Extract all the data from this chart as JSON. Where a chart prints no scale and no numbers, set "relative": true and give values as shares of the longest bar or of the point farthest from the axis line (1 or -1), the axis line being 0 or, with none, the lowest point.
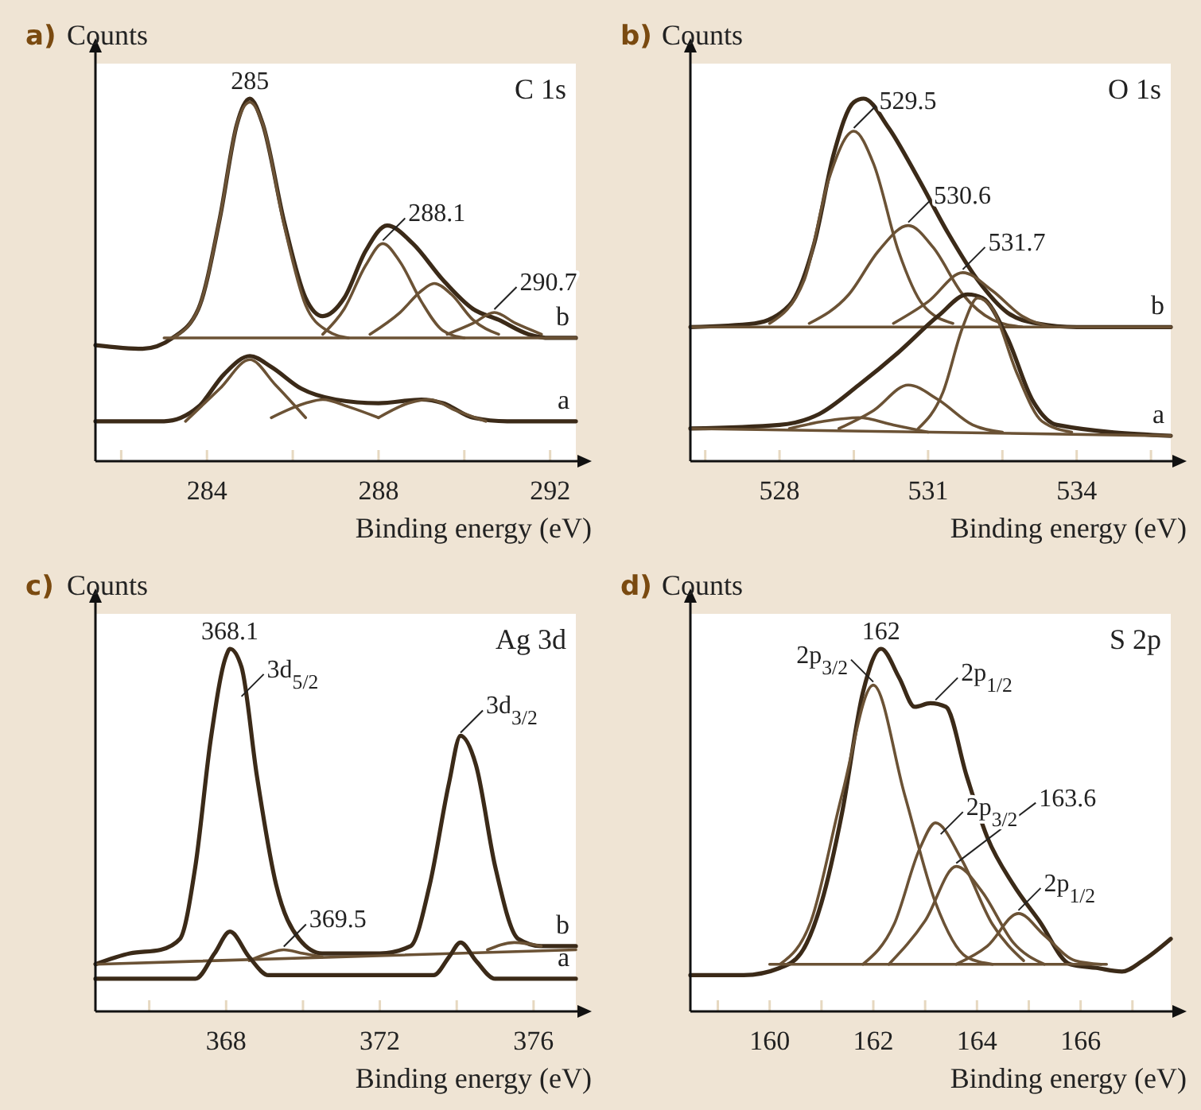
{
  "chart_data": [
    {
      "type": "line",
      "relative": true,
      "title": "C 1s",
      "ylabel": "Counts",
      "xlabel": "Binding energy (eV)",
      "xlim": [
        281.4,
        292.6
      ],
      "xticks": [
        {
          "value": 282,
          "label": null
        },
        284,
        {
          "value": 286,
          "label": null
        },
        288,
        {
          "value": 290,
          "label": null
        },
        292
      ],
      "series": [
        {
          "name": "b",
          "color": "#3b2a18",
          "x": [
            281.4,
            282.5,
            283.2,
            283.8,
            284.3,
            284.7,
            285.0,
            285.3,
            285.8,
            286.3,
            286.7,
            287.2,
            287.7,
            288.2,
            288.8,
            289.5,
            290.2,
            290.8,
            291.5,
            292.0,
            292.6
          ],
          "values": [
            0.32,
            0.31,
            0.34,
            0.42,
            0.67,
            0.93,
            1.0,
            0.93,
            0.66,
            0.45,
            0.4,
            0.45,
            0.58,
            0.65,
            0.6,
            0.5,
            0.42,
            0.39,
            0.35,
            0.34,
            0.34
          ]
        },
        {
          "color": "#6b5235",
          "x": [
            283.0,
            292.6
          ],
          "values": [
            0.34,
            0.34
          ]
        },
        {
          "color": "#6b5235",
          "x": [
            283.2,
            283.8,
            284.3,
            284.7,
            285.0,
            285.3,
            285.8,
            286.3,
            286.8,
            287.3
          ],
          "values": [
            0.34,
            0.42,
            0.67,
            0.93,
            0.99,
            0.93,
            0.65,
            0.43,
            0.36,
            0.34
          ]
        },
        {
          "color": "#6b5235",
          "x": [
            286.7,
            287.2,
            287.7,
            288.1,
            288.5,
            289.0,
            289.5,
            290.0
          ],
          "values": [
            0.35,
            0.42,
            0.54,
            0.6,
            0.55,
            0.44,
            0.36,
            0.34
          ]
        },
        {
          "color": "#6b5235",
          "x": [
            287.8,
            288.5,
            289.0,
            289.3,
            289.7,
            290.2,
            290.8
          ],
          "values": [
            0.35,
            0.41,
            0.47,
            0.49,
            0.46,
            0.39,
            0.35
          ]
        },
        {
          "color": "#6b5235",
          "x": [
            289.6,
            290.2,
            290.7,
            291.2,
            291.8
          ],
          "values": [
            0.35,
            0.38,
            0.41,
            0.38,
            0.35
          ]
        },
        {
          "name": "a",
          "color": "#3b2a18",
          "x": [
            281.4,
            283.0,
            283.8,
            284.4,
            285.0,
            285.5,
            286.2,
            287.0,
            288.0,
            289.0,
            289.5,
            290.2,
            291.0,
            292.6
          ],
          "values": [
            0.11,
            0.11,
            0.15,
            0.24,
            0.29,
            0.26,
            0.2,
            0.17,
            0.16,
            0.17,
            0.16,
            0.12,
            0.11,
            0.11
          ]
        },
        {
          "color": "#6b5235",
          "x": [
            283.5,
            284.3,
            285.0,
            285.6,
            286.3
          ],
          "values": [
            0.11,
            0.2,
            0.28,
            0.21,
            0.12
          ]
        },
        {
          "color": "#6b5235",
          "x": [
            285.5,
            286.3,
            286.7,
            287.3,
            288.0
          ],
          "values": [
            0.12,
            0.16,
            0.17,
            0.15,
            0.12
          ]
        },
        {
          "color": "#6b5235",
          "x": [
            288.0,
            288.7,
            289.2,
            289.8,
            290.5
          ],
          "values": [
            0.12,
            0.16,
            0.17,
            0.14,
            0.11
          ]
        }
      ],
      "annotations": [
        "a)",
        {
          "text": "285",
          "x": 285.0,
          "y": 1.0
        },
        {
          "text": "288.1",
          "x": 288.1,
          "y": 0.6
        },
        {
          "text": "290.7",
          "x": 290.7,
          "y": 0.41
        }
      ]
    },
    {
      "type": "line",
      "relative": true,
      "title": "O 1s",
      "ylabel": "Counts",
      "xlabel": "Binding energy (eV)",
      "xlim": [
        526.2,
        535.9
      ],
      "xticks": [
        {
          "value": 526.5,
          "label": null
        },
        528,
        {
          "value": 529.5,
          "label": null
        },
        531,
        {
          "value": 532.5,
          "label": null
        },
        534,
        {
          "value": 535.5,
          "label": null
        }
      ],
      "series": [
        {
          "name": "b",
          "color": "#3b2a18",
          "x": [
            526.2,
            527.5,
            528.2,
            528.7,
            529.1,
            529.5,
            529.7,
            530.2,
            530.8,
            531.4,
            532.0,
            532.6,
            533.2,
            534.0,
            535.9
          ],
          "values": [
            0.37,
            0.38,
            0.43,
            0.6,
            0.85,
            0.99,
            1.0,
            0.92,
            0.78,
            0.63,
            0.5,
            0.41,
            0.38,
            0.37,
            0.37
          ]
        },
        {
          "color": "#6b5235",
          "x": [
            526.2,
            535.9
          ],
          "values": [
            0.37,
            0.37
          ]
        },
        {
          "color": "#6b5235",
          "x": [
            527.8,
            528.5,
            529.0,
            529.5,
            529.9,
            530.4,
            530.9,
            531.5
          ],
          "values": [
            0.38,
            0.5,
            0.78,
            0.91,
            0.82,
            0.58,
            0.43,
            0.38
          ]
        },
        {
          "color": "#6b5235",
          "x": [
            528.6,
            529.4,
            530.0,
            530.6,
            531.1,
            531.7,
            532.3,
            532.9
          ],
          "values": [
            0.38,
            0.46,
            0.58,
            0.65,
            0.59,
            0.46,
            0.39,
            0.37
          ]
        },
        {
          "color": "#6b5235",
          "x": [
            530.3,
            531.0,
            531.7,
            532.3,
            532.9,
            533.5
          ],
          "values": [
            0.38,
            0.44,
            0.52,
            0.47,
            0.4,
            0.37
          ]
        },
        {
          "name": "a",
          "color": "#3b2a18",
          "x": [
            526.2,
            528.0,
            528.8,
            529.6,
            530.4,
            531.2,
            531.8,
            532.1,
            532.6,
            533.1,
            533.6,
            535.9
          ],
          "values": [
            0.09,
            0.1,
            0.13,
            0.21,
            0.3,
            0.4,
            0.46,
            0.45,
            0.34,
            0.17,
            0.1,
            0.07
          ]
        },
        {
          "color": "#6b5235",
          "x": [
            526.2,
            535.9
          ],
          "values": [
            0.09,
            0.07
          ]
        },
        {
          "color": "#6b5235",
          "x": [
            528.2,
            528.9,
            529.6,
            530.3,
            531.0
          ],
          "values": [
            0.09,
            0.11,
            0.12,
            0.1,
            0.08
          ]
        },
        {
          "color": "#6b5235",
          "x": [
            529.2,
            529.9,
            530.6,
            531.2,
            531.9,
            532.5
          ],
          "values": [
            0.09,
            0.14,
            0.21,
            0.17,
            0.1,
            0.08
          ]
        },
        {
          "color": "#6b5235",
          "x": [
            530.8,
            531.3,
            531.7,
            532.0,
            532.3,
            532.8,
            533.3,
            533.9
          ],
          "values": [
            0.09,
            0.19,
            0.37,
            0.45,
            0.42,
            0.24,
            0.11,
            0.08
          ]
        }
      ],
      "annotations": [
        "b)",
        {
          "text": "529.5",
          "x": 529.5,
          "y": 0.91
        },
        {
          "text": "530.6",
          "x": 530.6,
          "y": 0.65
        },
        {
          "text": "531.7",
          "x": 531.7,
          "y": 0.52
        }
      ]
    },
    {
      "type": "line",
      "relative": true,
      "title": "Ag 3d",
      "ylabel": "Counts",
      "xlabel": "Binding energy (eV)",
      "xlim": [
        364.6,
        377.1
      ],
      "xticks": [
        {
          "value": 366,
          "label": null
        },
        368,
        {
          "value": 370,
          "label": null
        },
        372,
        {
          "value": 374,
          "label": null
        },
        376
      ],
      "series": [
        {
          "name": "b",
          "color": "#3b2a18",
          "x": [
            364.6,
            365.5,
            366.3,
            366.8,
            367.2,
            367.6,
            368.0,
            368.1,
            368.4,
            368.8,
            369.3,
            369.9,
            370.5,
            372.0,
            372.8,
            373.3,
            373.8,
            374.1,
            374.5,
            375.0,
            375.6,
            376.2,
            377.1
          ],
          "values": [
            0.13,
            0.16,
            0.17,
            0.2,
            0.4,
            0.75,
            0.98,
            1.0,
            0.95,
            0.65,
            0.35,
            0.2,
            0.16,
            0.16,
            0.18,
            0.35,
            0.63,
            0.76,
            0.68,
            0.4,
            0.2,
            0.18,
            0.18
          ]
        },
        {
          "color": "#6b5235",
          "x": [
            364.6,
            377.1
          ],
          "values": [
            0.13,
            0.17
          ]
        },
        {
          "color": "#6b5235",
          "x": [
            368.6,
            369.1,
            369.5,
            370.0,
            370.5
          ],
          "values": [
            0.14,
            0.16,
            0.17,
            0.16,
            0.15
          ]
        },
        {
          "color": "#6b5235",
          "x": [
            374.8,
            375.5,
            376.2
          ],
          "values": [
            0.17,
            0.19,
            0.18
          ]
        },
        {
          "name": "a",
          "color": "#3b2a18",
          "x": [
            364.6,
            367.2,
            367.7,
            368.1,
            368.6,
            369.1,
            373.4,
            373.8,
            374.1,
            374.5,
            375.0,
            377.1
          ],
          "values": [
            0.09,
            0.09,
            0.16,
            0.22,
            0.15,
            0.1,
            0.1,
            0.15,
            0.19,
            0.14,
            0.09,
            0.09
          ]
        }
      ],
      "annotations": [
        "c)",
        {
          "text": "368.1",
          "x": 368.1,
          "y": 1.0
        },
        {
          "text": "3d$_{5/2}$",
          "x": 368.4,
          "y": 0.86
        },
        {
          "text": "3d$_{3/2}$",
          "x": 374.1,
          "y": 0.76
        },
        {
          "text": "369.5",
          "x": 369.5,
          "y": 0.17
        }
      ]
    },
    {
      "type": "line",
      "relative": true,
      "title": "S 2p",
      "ylabel": "Counts",
      "xlabel": "Binding energy (eV)",
      "xlim": [
        158.47,
        167.74
      ],
      "xticks": [
        {
          "value": 159,
          "label": null
        },
        160,
        {
          "value": 161,
          "label": null
        },
        162,
        {
          "value": 163,
          "label": null
        },
        164,
        {
          "value": 165,
          "label": null
        },
        166,
        {
          "value": 167,
          "label": null
        }
      ],
      "series": [
        {
          "color": "#3b2a18",
          "x": [
            158.47,
            159.5,
            160.2,
            160.6,
            161.0,
            161.4,
            161.8,
            162.15,
            162.5,
            162.8,
            163.1,
            163.4,
            163.8,
            164.2,
            164.7,
            165.2,
            165.8,
            166.3,
            166.8,
            167.2,
            167.74
          ],
          "values": [
            0.1,
            0.1,
            0.12,
            0.16,
            0.3,
            0.55,
            0.88,
            1.0,
            0.92,
            0.84,
            0.85,
            0.84,
            0.65,
            0.48,
            0.35,
            0.25,
            0.13,
            0.12,
            0.11,
            0.14,
            0.2
          ]
        },
        {
          "color": "#6b5235",
          "x": [
            160.0,
            166.5
          ],
          "values": [
            0.13,
            0.13
          ]
        },
        {
          "color": "#6b5235",
          "x": [
            160.2,
            160.8,
            161.4,
            162.0,
            162.6,
            163.2,
            163.8,
            164.3
          ],
          "values": [
            0.13,
            0.25,
            0.6,
            0.9,
            0.6,
            0.3,
            0.15,
            0.13
          ]
        },
        {
          "color": "#6b5235",
          "x": [
            161.8,
            162.4,
            162.9,
            163.2,
            163.7,
            164.3,
            164.9
          ],
          "values": [
            0.13,
            0.24,
            0.45,
            0.52,
            0.42,
            0.24,
            0.14
          ]
        },
        {
          "color": "#6b5235",
          "x": [
            162.3,
            163.0,
            163.6,
            164.1,
            164.7,
            165.3
          ],
          "values": [
            0.13,
            0.25,
            0.4,
            0.33,
            0.19,
            0.13
          ]
        },
        {
          "color": "#6b5235",
          "x": [
            163.6,
            164.2,
            164.8,
            165.3,
            165.9,
            166.4
          ],
          "values": [
            0.13,
            0.18,
            0.27,
            0.21,
            0.14,
            0.13
          ]
        }
      ],
      "annotations": [
        "d)",
        {
          "text": "162",
          "x": 162.15,
          "y": 1.0
        },
        {
          "text": "2p$_{3/2}$",
          "x": 162.0,
          "y": 0.9
        },
        {
          "text": "2p$_{1/2}$",
          "x": 163.2,
          "y": 0.85
        },
        {
          "text": "2p$_{3/2}$",
          "x": 163.3,
          "y": 0.48
        },
        {
          "text": "163.6",
          "x": 163.6,
          "y": 0.4
        },
        {
          "text": "2p$_{1/2}$",
          "x": 164.8,
          "y": 0.27
        }
      ]
    }
  ]
}
